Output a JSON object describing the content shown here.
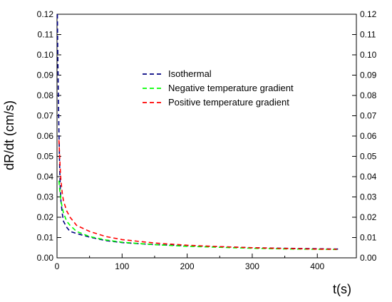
{
  "chart_data": {
    "type": "line",
    "title": "",
    "xlabel": "t(s)",
    "ylabel": "dR/dt (cm/s)",
    "xlim": [
      0,
      460
    ],
    "ylim": [
      0,
      0.12
    ],
    "x_ticks": [
      0,
      100,
      200,
      300,
      400
    ],
    "x_tick_labels": [
      "0",
      "100",
      "200",
      "300",
      "400"
    ],
    "y_ticks": [
      0,
      0.01,
      0.02,
      0.03,
      0.04,
      0.05,
      0.06,
      0.07,
      0.08,
      0.09,
      0.1,
      0.11,
      0.12
    ],
    "y_tick_labels": [
      "0.00",
      "0.01",
      "0.02",
      "0.03",
      "0.04",
      "0.05",
      "0.06",
      "0.07",
      "0.08",
      "0.09",
      "0.10",
      "0.11",
      "0.12"
    ],
    "right_y_axis_mirrored": true,
    "grid": false,
    "legend_position": "upper-center",
    "series": [
      {
        "name": "Isothermal",
        "color": "#000080",
        "dash": "dashed",
        "x": [
          0.5,
          1,
          2,
          3,
          4,
          5,
          6,
          8,
          10,
          15,
          20,
          30,
          50,
          75,
          100,
          150,
          200,
          250,
          300,
          350,
          400,
          435
        ],
        "y": [
          0.12,
          0.105,
          0.082,
          0.062,
          0.045,
          0.034,
          0.028,
          0.022,
          0.018,
          0.015,
          0.013,
          0.012,
          0.0102,
          0.0085,
          0.0075,
          0.0065,
          0.006,
          0.0055,
          0.005,
          0.0047,
          0.0045,
          0.0043
        ]
      },
      {
        "name": "Negative temperature gradient",
        "color": "#00ff00",
        "dash": "dashed",
        "x": [
          3,
          4,
          5,
          6,
          8,
          10,
          15,
          20,
          30,
          50,
          75,
          100,
          150,
          200,
          250,
          300,
          350,
          400,
          430
        ],
        "y": [
          0.038,
          0.034,
          0.031,
          0.028,
          0.025,
          0.022,
          0.018,
          0.016,
          0.013,
          0.0105,
          0.0088,
          0.0077,
          0.0065,
          0.0057,
          0.0052,
          0.0047,
          0.0044,
          0.0042,
          0.0041
        ]
      },
      {
        "name": "Positive temperature gradient",
        "color": "#ff0000",
        "dash": "dashed",
        "x": [
          3,
          4,
          5,
          6,
          8,
          10,
          15,
          20,
          30,
          50,
          75,
          100,
          150,
          200,
          250,
          300,
          350,
          400,
          430
        ],
        "y": [
          0.058,
          0.05,
          0.043,
          0.038,
          0.032,
          0.028,
          0.023,
          0.02,
          0.016,
          0.013,
          0.0105,
          0.009,
          0.0073,
          0.0062,
          0.0055,
          0.005,
          0.0046,
          0.0043,
          0.0042
        ]
      }
    ]
  }
}
